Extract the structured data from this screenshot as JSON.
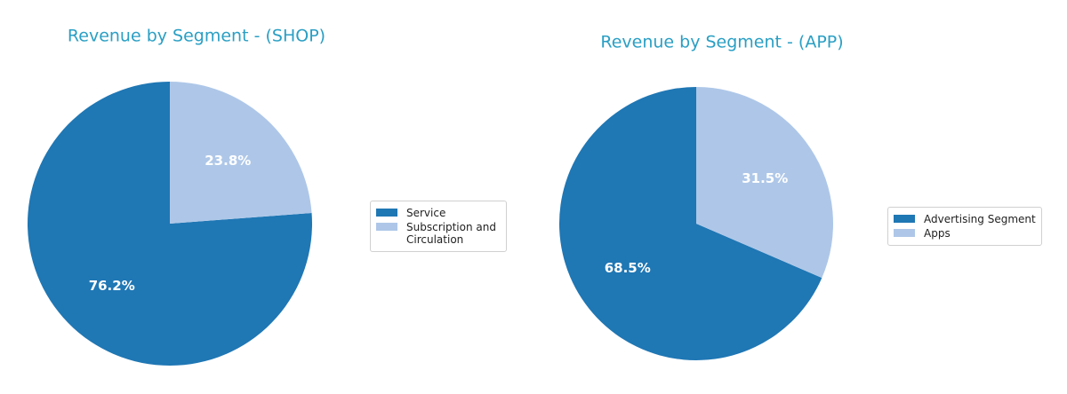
{
  "chart_data": [
    {
      "type": "pie",
      "title": "Revenue by Segment - (SHOP)",
      "categories": [
        "Service",
        "Subscription and Circulation"
      ],
      "values": [
        76.2,
        23.8
      ],
      "value_labels": [
        "76.2%",
        "23.8%"
      ],
      "colors": [
        "#1f77b4",
        "#aec7e8"
      ]
    },
    {
      "type": "pie",
      "title": "Revenue by Segment - (APP)",
      "categories": [
        "Advertising Segment",
        "Apps"
      ],
      "values": [
        68.5,
        31.5
      ],
      "value_labels": [
        "68.5%",
        "31.5%"
      ],
      "colors": [
        "#1f77b4",
        "#aec7e8"
      ]
    }
  ]
}
